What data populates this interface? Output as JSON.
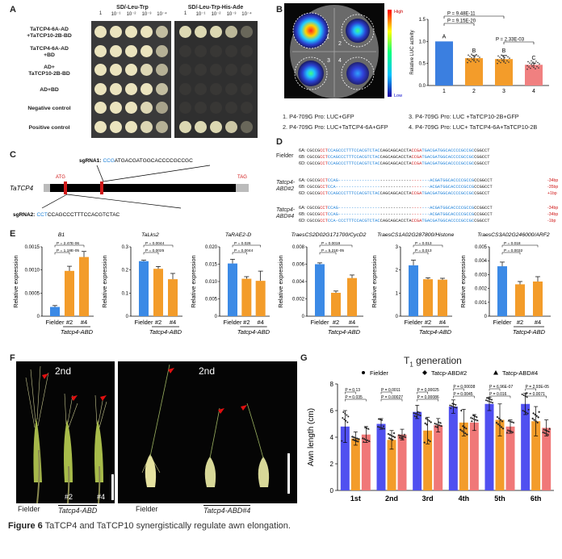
{
  "panelA": {
    "letter": "A",
    "header_left": "SD/-Leu-Trp",
    "header_right": "SD/-Leu-Trp-His-Ade",
    "dilutions": [
      "1",
      "10⁻¹",
      "10⁻²",
      "10⁻³",
      "10⁻⁴"
    ],
    "rows": [
      {
        "label1": "TaTCP4-6A-AD",
        "label2": "+TaTCP10-2B-BD"
      },
      {
        "label1": "TaTCP4-6A-AD",
        "label2": "+BD"
      },
      {
        "label1": "AD+",
        "label2": "TaTCP10-2B-BD"
      },
      {
        "label1": "AD+BD",
        "label2": ""
      },
      {
        "label1": "Negative control",
        "label2": ""
      },
      {
        "label1": "Positive control",
        "label2": ""
      }
    ]
  },
  "panelB": {
    "letter": "B",
    "scale_high": "High",
    "scale_low": "Low",
    "leaf_numbers": [
      "1",
      "2",
      "3",
      "4"
    ],
    "ylabel": "Relative LUC activity",
    "pvals": [
      "P = 9.48E-11",
      "P = 9.15E-20",
      "P = 2.33E-03"
    ],
    "letters": [
      "A",
      "B",
      "B",
      "C"
    ],
    "legend": [
      "1. P4-709G Pro: LUC+GFP",
      "2. P4-709G Pro: LUC+TaTCP4-6A+GFP",
      "3. P4-709G Pro: LUC +TaTCP10-2B+GFP",
      "4. P4-709G Pro: LUC+ TaTCP4-6A+TaTCP10-2B"
    ]
  },
  "panelC": {
    "letter": "C",
    "gene": "TaTCP4",
    "sgRNA1": "sgRNA1: CCGATGACGATGGCACCCCGCCGC",
    "sgRNA1_label": "sgRNA1:",
    "sgRNA1_pam": "CCG",
    "sgRNA1_rest": "ATGACGATGGCACCCCGCCGC",
    "sgRNA2_label": "sgRNA2:",
    "sgRNA2_pam": "CCT",
    "sgRNA2_rest": "CCAGCCCTTTCCACGTCTAC",
    "atg": "ATG",
    "tag": "TAG"
  },
  "panelD": {
    "letter": "D",
    "groups": [
      {
        "name": "Fielder",
        "rows": [
          {
            "g": "6A:",
            "seq": "CGCCGCCTCCAGCCCTTTCCACGTCTACCAGCAGCACCTACCGATGACGATGGCACCCCGCCGCCGGCCT",
            "note": ""
          },
          {
            "g": "6B:",
            "seq": "CGCCGCCTCCAGCCCTTTCCACGTCTACCAGCAGCACCTACCGATGACGATGGCACCCCGCCGCCGGCCT",
            "note": ""
          },
          {
            "g": "6D:",
            "seq": "CGCCGCCTCCAGCCCTTTCCACGTCTACCAGCAGCACCTACCGATGACGATGGCACCCCGCCGCCGGCCT",
            "note": ""
          }
        ]
      },
      {
        "name": "Tatcp4-ABD#2",
        "rows": [
          {
            "g": "6A:",
            "seq": "CGCCGCCTCCAG-----------------------------------ACGATGGCACCCCGCCGCCGGCCT",
            "note": "-34bp"
          },
          {
            "g": "6B:",
            "seq": "CGCCGCCTCCA------------------------------------ACGATGGCACCCCGCCGCCGGCCT",
            "note": "-35bp"
          },
          {
            "g": "6D:",
            "seq": "CGCCGCCTCCAGCCCTTTCCACGTCTACCAGCAGCACCTACCGATGACGATGGCACCCCGCCGCCGGCCT",
            "note": "+1bp"
          }
        ]
      },
      {
        "name": "Tatcp4-ABD#4",
        "rows": [
          {
            "g": "6A:",
            "seq": "CGCCGCCTCCAG-----------------------------------ACGATGGCACCCCGCCGCCGGCCT",
            "note": "-34bp"
          },
          {
            "g": "6B:",
            "seq": "CGCCGCCTCCAG-----------------------------------ACGATGGCACCCCGCCGCCGGCCT",
            "note": "-34bp"
          },
          {
            "g": "6D:",
            "seq": "CGCCGCCTCCA-CCCTTTCCACGTCTACCAGCAGCACCTACCGATGACGATGGCACCCCGCCGCCGGCCT",
            "note": "-1bp"
          }
        ]
      }
    ]
  },
  "panelE": {
    "letter": "E",
    "ylabel": "Relative expression",
    "xcats": [
      "Fielder",
      "#2",
      "#4"
    ],
    "group_label": "Tatcp4-ABD",
    "charts": [
      {
        "title": "B1",
        "ymax": 0.0015,
        "ticks": [
          "0",
          "0.0005",
          "0.0010",
          "0.0015"
        ],
        "p": [
          "P = 2.47E-06",
          "P = 1.18E-05"
        ]
      },
      {
        "title": "TaLks2",
        "ymax": 0.3,
        "ticks": [
          "0",
          "0.1",
          "0.2",
          "0.3"
        ],
        "p": [
          "P = 0.0044",
          "P = 0.0025"
        ]
      },
      {
        "title": "TaRAE2-D",
        "ymax": 0.02,
        "ticks": [
          "0",
          "0.005",
          "0.010",
          "0.015",
          "0.020"
        ],
        "p": [
          "P = 0.026",
          "P = 0.0044"
        ]
      },
      {
        "title": "TraesCS2D02G171700/CycD2",
        "ymax": 0.008,
        "ticks": [
          "0",
          "0.002",
          "0.004",
          "0.006",
          "0.008"
        ],
        "p": [
          "P = 0.0019",
          "P = 5.21E-05"
        ]
      },
      {
        "title": "TraesCS1A02G287800/Histone H4",
        "ymax": 3,
        "ticks": [
          "0",
          "1",
          "2",
          "3"
        ],
        "p": [
          "P = 0.013",
          "P = 0.013"
        ]
      },
      {
        "title": "TraesCS3A02G246000/ARF2",
        "ymax": 0.005,
        "ticks": [
          "0",
          "0.001",
          "0.002",
          "0.003",
          "0.004",
          "0.005"
        ],
        "p": [
          "P = 0.018",
          "P = 0.0032"
        ]
      }
    ]
  },
  "panelF": {
    "letter": "F",
    "label_2nd_a": "2nd",
    "label_2nd_b": "2nd",
    "num2": "#2",
    "num4": "#4",
    "fielder": "Fielder",
    "mutant_a": "Tatcp4-ABD",
    "fielder_b": "Fielder",
    "mutant_b": "Tatcp4-ABD#4"
  },
  "panelG": {
    "letter": "G",
    "title": "T",
    "title_sub": "1",
    "title_rest": " generation",
    "legend": [
      "Fielder",
      "Tatcp-ABD#2",
      "Tatcp-ABD#4"
    ],
    "ylabel": "Awn length (cm)",
    "yticks": [
      "0",
      "2",
      "4",
      "6",
      "8"
    ],
    "p_pairs": [
      [
        "P = 0.13",
        "P = 0.035"
      ],
      [
        "P = 0.0011",
        "P = 0.00027"
      ],
      [
        "P = 0.00025",
        "P = 0.00086"
      ],
      [
        "P = 0.00038",
        "P = 0.0045"
      ],
      [
        "P = 6.96E-07",
        "P = 0.016"
      ],
      [
        "P = 2.93E-05",
        "P = 0.0071"
      ]
    ]
  },
  "chart_data": [
    {
      "type": "bar",
      "title": "Relative LUC activity",
      "categories": [
        "1",
        "2",
        "3",
        "4"
      ],
      "values": [
        1.0,
        0.62,
        0.6,
        0.47
      ],
      "errors": [
        0.0,
        0.06,
        0.08,
        0.04
      ],
      "ylim": [
        0,
        1.5
      ],
      "yticks": [
        0,
        0.5,
        1.0,
        1.5
      ],
      "colors": [
        "#3b7fe0",
        "#f39c2a",
        "#f39c2a",
        "#f08080"
      ]
    },
    {
      "type": "bar",
      "title": "B1",
      "categories": [
        "Fielder",
        "#2",
        "#4"
      ],
      "values": [
        0.0002,
        0.00098,
        0.00128
      ],
      "errors": [
        3e-05,
        0.0001,
        0.00012
      ],
      "ylim": [
        0,
        0.0015
      ]
    },
    {
      "type": "bar",
      "title": "TaLks2",
      "categories": [
        "Fielder",
        "#2",
        "#4"
      ],
      "values": [
        0.238,
        0.205,
        0.16
      ],
      "errors": [
        0.004,
        0.01,
        0.025
      ],
      "ylim": [
        0,
        0.3
      ]
    },
    {
      "type": "bar",
      "title": "TaRAE2-D",
      "categories": [
        "Fielder",
        "#2",
        "#4"
      ],
      "values": [
        0.0152,
        0.0108,
        0.0102
      ],
      "errors": [
        0.0012,
        0.0006,
        0.0028
      ],
      "ylim": [
        0,
        0.02
      ]
    },
    {
      "type": "bar",
      "title": "TraesCS2D02G171700/CycD2",
      "categories": [
        "Fielder",
        "#2",
        "#4"
      ],
      "values": [
        0.006,
        0.0027,
        0.0044
      ],
      "errors": [
        0.00015,
        0.0002,
        0.00035
      ],
      "ylim": [
        0,
        0.008
      ]
    },
    {
      "type": "bar",
      "title": "TraesCS1A02G287800/Histone H4",
      "categories": [
        "Fielder",
        "#2",
        "#4"
      ],
      "values": [
        2.2,
        1.6,
        1.58
      ],
      "errors": [
        0.22,
        0.06,
        0.06
      ],
      "ylim": [
        0,
        3
      ]
    },
    {
      "type": "bar",
      "title": "TraesCS3A02G246000/ARF2",
      "categories": [
        "Fielder",
        "#2",
        "#4"
      ],
      "values": [
        0.0036,
        0.0023,
        0.0025
      ],
      "errors": [
        0.0003,
        0.0002,
        0.00035
      ],
      "ylim": [
        0,
        0.005
      ]
    },
    {
      "type": "bar",
      "title": "Awn length (cm), T1 generation",
      "categories": [
        "1st",
        "2nd",
        "3rd",
        "4th",
        "5th",
        "6th"
      ],
      "series": [
        {
          "name": "Fielder",
          "values": [
            4.8,
            5.0,
            5.9,
            6.3,
            6.5,
            6.5
          ],
          "errors": [
            1.2,
            0.4,
            0.5,
            0.5,
            0.5,
            0.8
          ]
        },
        {
          "name": "Tatcp-ABD#2",
          "values": [
            3.9,
            3.8,
            4.5,
            5.1,
            5.3,
            5.2
          ],
          "errors": [
            0.5,
            0.7,
            1.0,
            1.0,
            1.2,
            1.1
          ]
        },
        {
          "name": "Tatcp-ABD#4",
          "values": [
            4.2,
            4.2,
            4.9,
            5.1,
            4.8,
            4.7
          ],
          "errors": [
            0.6,
            0.4,
            0.5,
            0.6,
            0.5,
            0.6
          ]
        }
      ],
      "ylim": [
        0,
        8
      ]
    }
  ],
  "caption": {
    "label": "Figure 6",
    "text": " TaTCP4 and TaTCP10 synergistically regulate awn elongation."
  }
}
